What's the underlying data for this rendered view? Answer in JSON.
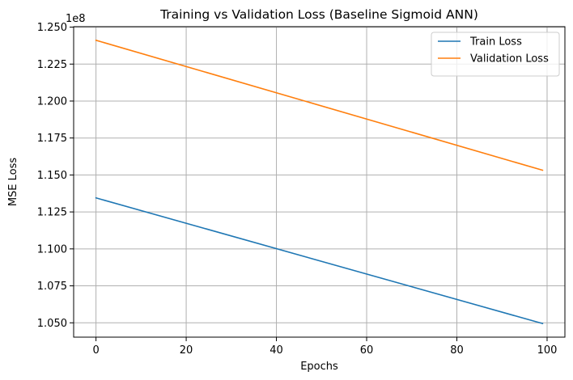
{
  "chart_data": {
    "type": "line",
    "title": "Training vs Validation Loss (Baseline Sigmoid ANN)",
    "xlabel": "Epochs",
    "ylabel": "MSE Loss",
    "y_offset_label": "1e8",
    "xlim": [
      -4.95,
      103.95
    ],
    "ylim": [
      1.0403,
      1.2503
    ],
    "x_ticks": [
      0,
      20,
      40,
      60,
      80,
      100
    ],
    "x_tick_labels": [
      "0",
      "20",
      "40",
      "60",
      "80",
      "100"
    ],
    "y_ticks": [
      1.05,
      1.075,
      1.1,
      1.125,
      1.15,
      1.175,
      1.2,
      1.225,
      1.25
    ],
    "y_tick_labels": [
      "1.050",
      "1.075",
      "1.100",
      "1.125",
      "1.150",
      "1.175",
      "1.200",
      "1.225",
      "1.250"
    ],
    "y_unit_multiplier": 100000000,
    "grid": true,
    "legend_position": "top-right",
    "series": [
      {
        "name": "Train Loss",
        "color": "#1f77b4",
        "x": [
          0,
          99
        ],
        "y": [
          1.1345,
          1.0495
        ]
      },
      {
        "name": "Validation Loss",
        "color": "#ff7f0e",
        "x": [
          0,
          99
        ],
        "y": [
          1.2411,
          1.1532
        ]
      }
    ]
  }
}
